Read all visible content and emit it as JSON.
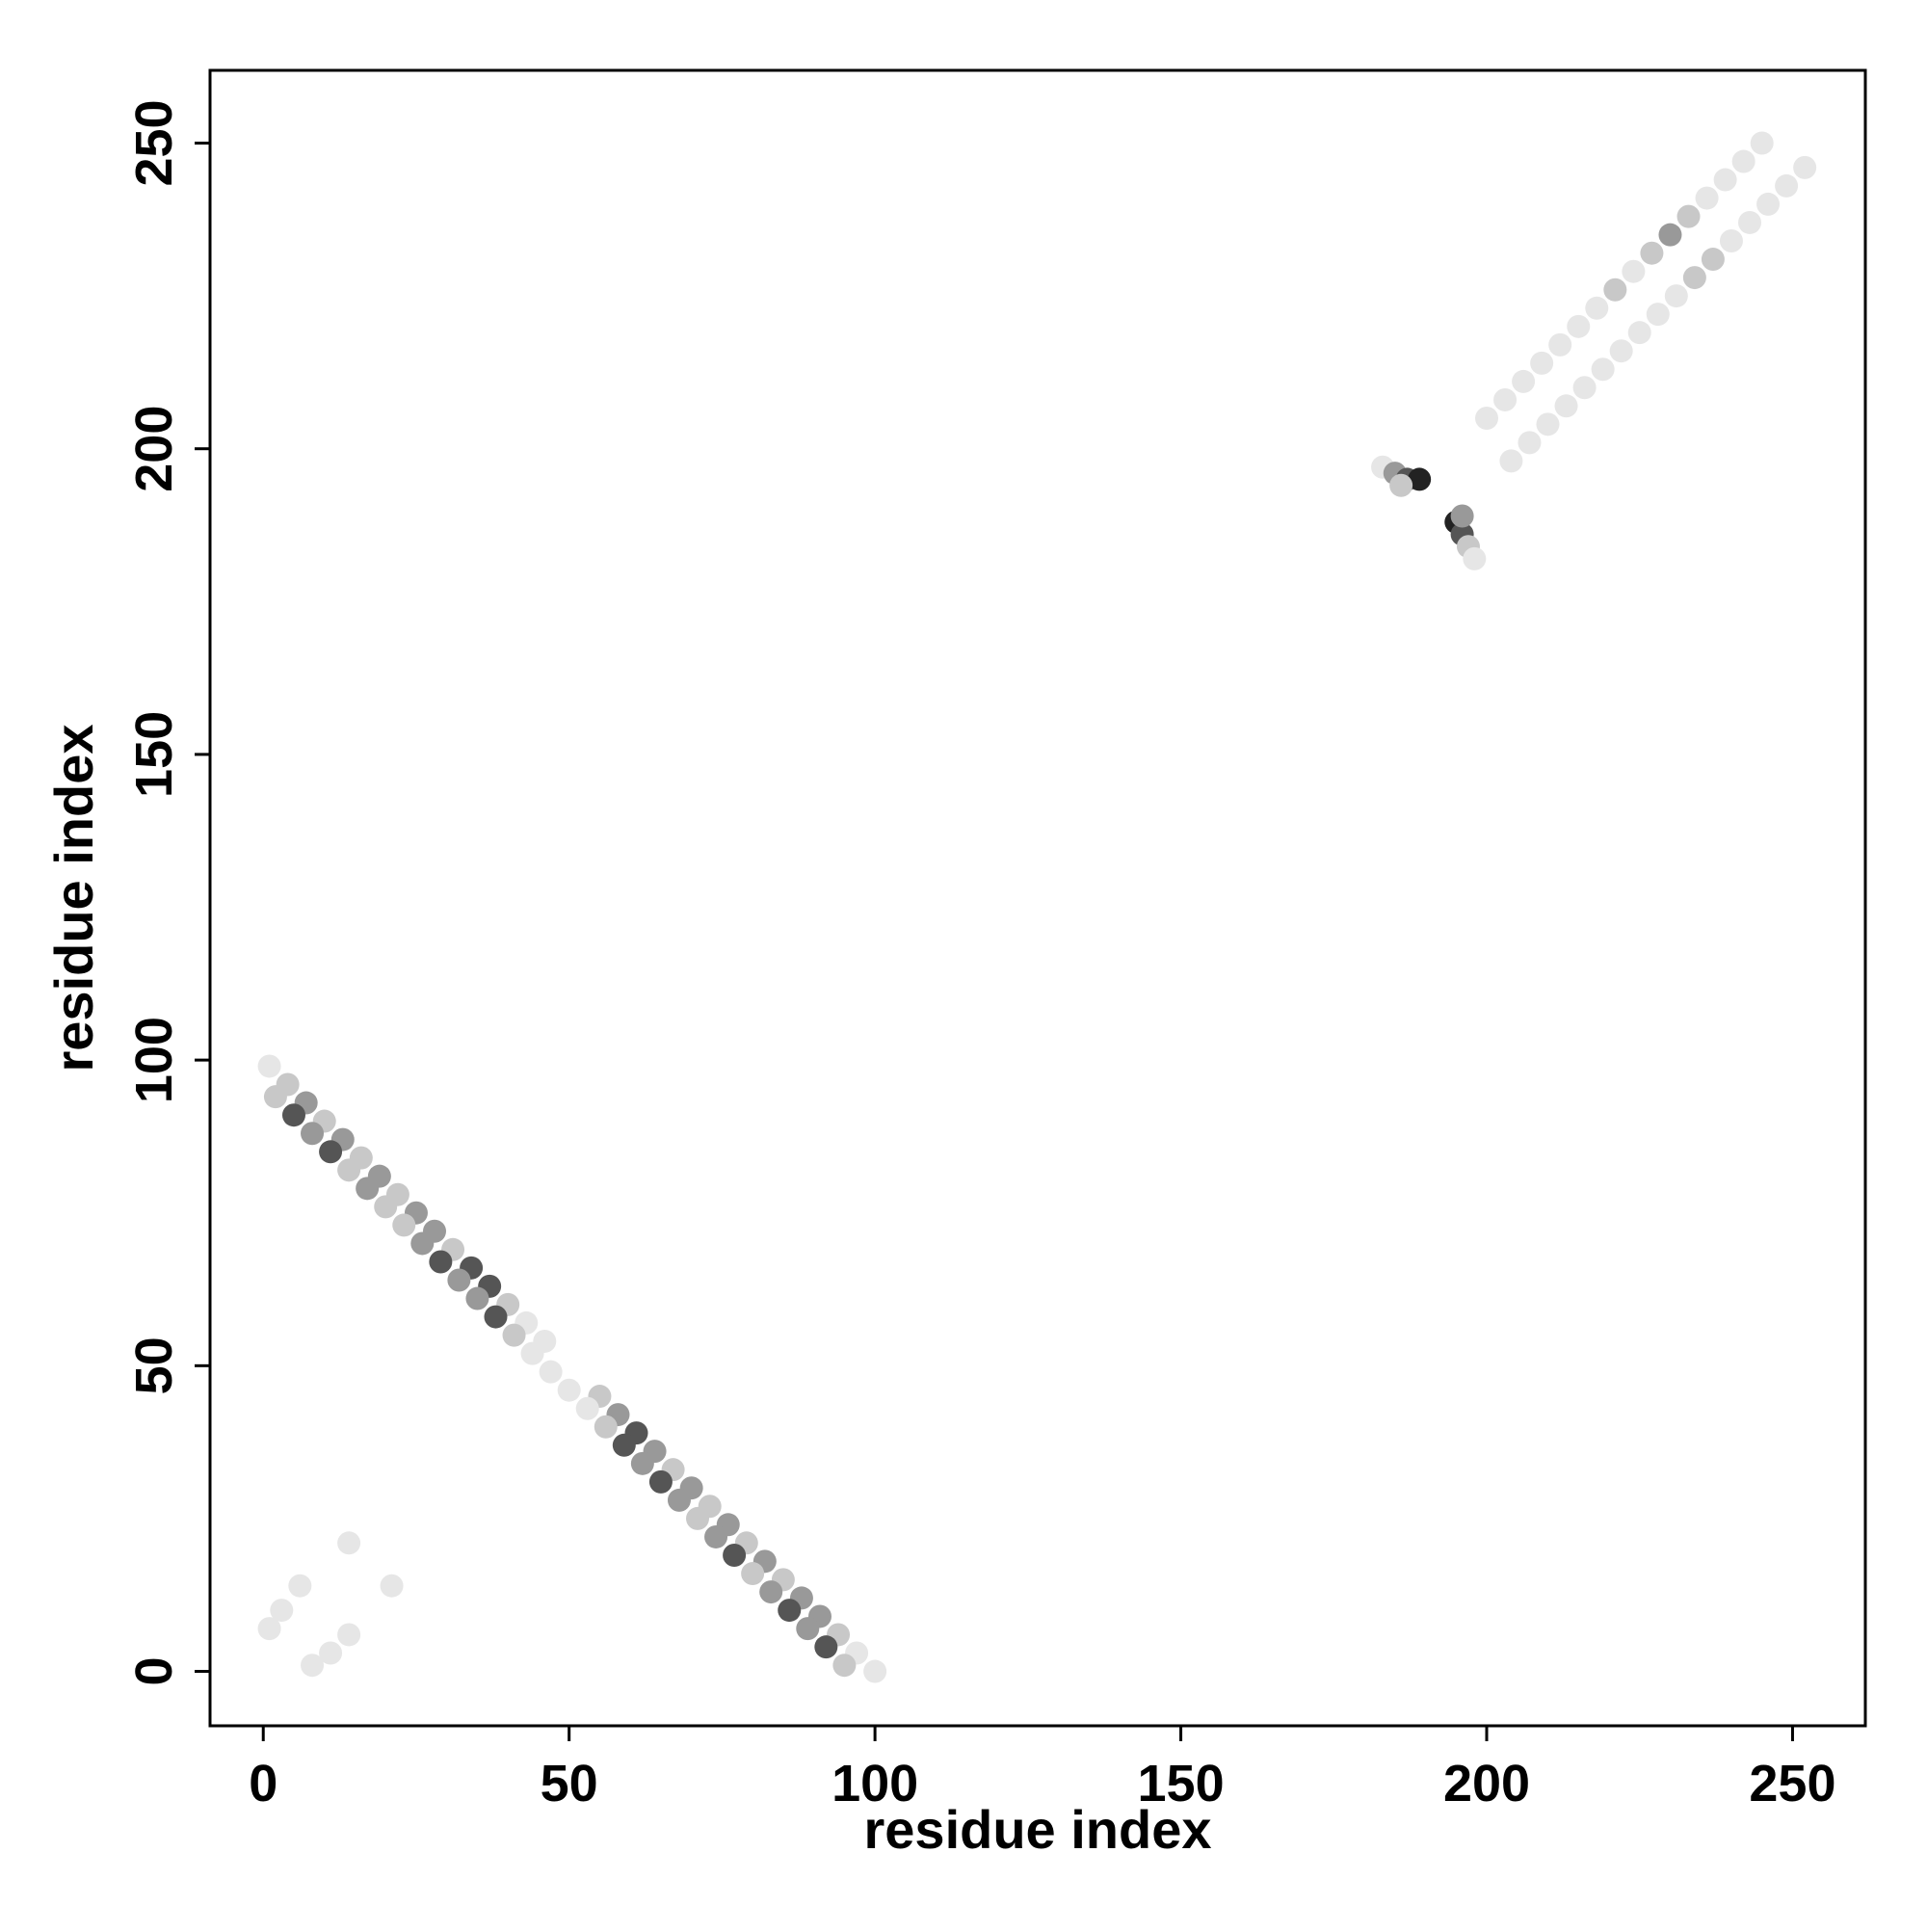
{
  "chart_data": {
    "type": "scatter",
    "x_label": "residue index",
    "y_label": "residue index",
    "xlim": [
      -8.7,
      261.9
    ],
    "ylim": [
      -8.9,
      261.9
    ],
    "xticks": [
      0,
      50,
      100,
      150,
      200,
      250
    ],
    "yticks": [
      0,
      50,
      100,
      150,
      200,
      250
    ],
    "x": [
      1,
      4,
      7,
      10,
      13,
      16,
      19,
      22,
      25,
      28,
      31,
      34,
      37,
      40,
      43,
      46,
      55,
      58,
      61,
      64,
      67,
      70,
      73,
      76,
      79,
      82,
      85,
      88,
      91,
      94,
      97,
      100,
      2,
      5,
      8,
      11,
      14,
      17,
      20,
      23,
      26,
      29,
      32,
      35,
      38,
      41,
      44,
      47,
      50,
      53,
      56,
      59,
      62,
      65,
      68,
      71,
      74,
      77,
      80,
      83,
      86,
      89,
      92,
      95,
      200,
      203,
      206,
      209,
      212,
      215,
      218,
      221,
      224,
      227,
      230,
      233,
      236,
      239,
      242,
      245,
      204,
      207,
      210,
      213,
      216,
      219,
      222,
      225,
      228,
      231,
      234,
      237,
      240,
      243,
      246,
      249,
      252,
      183,
      185,
      187,
      189,
      186,
      195,
      196,
      197,
      198,
      196,
      1,
      3,
      6,
      8,
      11,
      14,
      14,
      21
    ],
    "y": [
      99,
      96,
      93,
      90,
      87,
      84,
      81,
      78,
      75,
      72,
      69,
      66,
      63,
      60,
      57,
      54,
      45,
      42,
      39,
      36,
      33,
      30,
      27,
      24,
      21,
      18,
      15,
      12,
      9,
      6,
      3,
      0,
      94,
      91,
      88,
      85,
      82,
      79,
      76,
      73,
      70,
      67,
      64,
      61,
      58,
      55,
      52,
      49,
      46,
      43,
      40,
      37,
      34,
      31,
      28,
      25,
      22,
      19,
      16,
      13,
      10,
      7,
      4,
      1,
      205,
      208,
      211,
      214,
      217,
      220,
      223,
      226,
      229,
      232,
      235,
      238,
      241,
      244,
      247,
      250,
      198,
      201,
      204,
      207,
      210,
      213,
      216,
      219,
      222,
      225,
      228,
      231,
      234,
      237,
      240,
      243,
      246,
      197,
      196,
      195,
      195,
      194,
      188,
      186,
      184,
      182,
      189,
      7,
      10,
      14,
      1,
      3,
      6,
      21,
      14
    ],
    "colors": [
      "#e6e6e6",
      "#c8c8c8",
      "#999999",
      "#c8c8c8",
      "#999999",
      "#c8c8c8",
      "#999999",
      "#c8c8c8",
      "#999999",
      "#999999",
      "#c8c8c8",
      "#555555",
      "#555555",
      "#c8c8c8",
      "#e6e6e6",
      "#e6e6e6",
      "#c8c8c8",
      "#999999",
      "#555555",
      "#999999",
      "#c8c8c8",
      "#999999",
      "#c8c8c8",
      "#999999",
      "#c8c8c8",
      "#999999",
      "#c8c8c8",
      "#999999",
      "#999999",
      "#c8c8c8",
      "#e6e6e6",
      "#e6e6e6",
      "#c8c8c8",
      "#555555",
      "#999999",
      "#555555",
      "#c8c8c8",
      "#999999",
      "#c8c8c8",
      "#c8c8c8",
      "#999999",
      "#555555",
      "#999999",
      "#999999",
      "#555555",
      "#c8c8c8",
      "#e6e6e6",
      "#e6e6e6",
      "#e6e6e6",
      "#e6e6e6",
      "#c8c8c8",
      "#555555",
      "#999999",
      "#555555",
      "#999999",
      "#c8c8c8",
      "#999999",
      "#555555",
      "#c8c8c8",
      "#999999",
      "#555555",
      "#999999",
      "#555555",
      "#c8c8c8",
      "#e6e6e6",
      "#e6e6e6",
      "#e6e6e6",
      "#e6e6e6",
      "#e6e6e6",
      "#e6e6e6",
      "#e6e6e6",
      "#c8c8c8",
      "#e6e6e6",
      "#c8c8c8",
      "#999999",
      "#c8c8c8",
      "#e6e6e6",
      "#e6e6e6",
      "#e6e6e6",
      "#e6e6e6",
      "#e6e6e6",
      "#e6e6e6",
      "#e6e6e6",
      "#e6e6e6",
      "#e6e6e6",
      "#e6e6e6",
      "#e6e6e6",
      "#e6e6e6",
      "#e6e6e6",
      "#e6e6e6",
      "#c8c8c8",
      "#c8c8c8",
      "#e6e6e6",
      "#e6e6e6",
      "#e6e6e6",
      "#e6e6e6",
      "#e6e6e6",
      "#e6e6e6",
      "#999999",
      "#555555",
      "#222222",
      "#c8c8c8",
      "#222222",
      "#555555",
      "#c8c8c8",
      "#e6e6e6",
      "#999999",
      "#e6e6e6",
      "#e6e6e6",
      "#e6e6e6",
      "#e6e6e6",
      "#e6e6e6",
      "#e6e6e6",
      "#e6e6e6",
      "#e6e6e6"
    ]
  }
}
